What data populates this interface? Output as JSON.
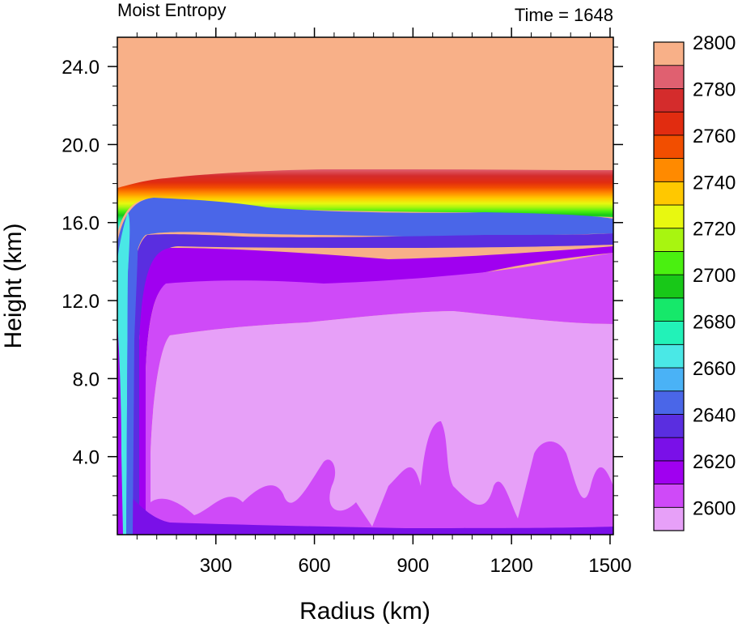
{
  "chart_data": {
    "type": "heatmap",
    "title": "Moist Entropy",
    "subtitle": "Time = 1648",
    "xlabel": "Radius (km)",
    "ylabel": "Height (km)",
    "xlim": [
      0,
      1510
    ],
    "ylim": [
      0,
      25.5
    ],
    "x_ticks": [
      300,
      600,
      900,
      1200,
      1500
    ],
    "x_tick_labels": [
      "300",
      "600",
      "900",
      "1200",
      "1500"
    ],
    "y_ticks": [
      4,
      8,
      12,
      16,
      20,
      24
    ],
    "y_tick_labels": [
      "4.0",
      "8.0",
      "12.0",
      "16.0",
      "20.0",
      "24.0"
    ],
    "legend": {
      "placement": "right",
      "levels": [
        2600,
        2610,
        2620,
        2630,
        2640,
        2650,
        2660,
        2670,
        2680,
        2690,
        2700,
        2710,
        2720,
        2730,
        2740,
        2750,
        2760,
        2770,
        2780,
        2790,
        2800
      ],
      "labels": [
        "2600",
        "2620",
        "2640",
        "2660",
        "2680",
        "2700",
        "2720",
        "2740",
        "2760",
        "2780",
        "2800"
      ],
      "colors": [
        "#e7a0f8",
        "#cf4af8",
        "#a000f0",
        "#7a10e8",
        "#5a2ee0",
        "#4a66e8",
        "#4ab2f6",
        "#4ae8e6",
        "#22f2b8",
        "#16e86a",
        "#18c818",
        "#4af010",
        "#a8f510",
        "#e8f810",
        "#ffc800",
        "#ff8a00",
        "#f24e00",
        "#e12c10",
        "#d42c2c",
        "#e06070",
        "#f8b088"
      ]
    },
    "series": [
      {
        "name": "",
        "level_bottom_km": 0,
        "note_level": 2600
      },
      {
        "x_km": [
          0,
          100,
          200,
          300,
          400,
          500,
          600,
          700,
          800,
          900,
          1000,
          1100,
          1200,
          1300,
          1400,
          1500
        ],
        "tropopause_height_km": [
          15.0,
          17.6,
          17.9,
          18.0,
          18.1,
          18.1,
          18.0,
          18.0,
          18.0,
          17.9,
          17.8,
          17.6,
          17.4,
          17.2,
          17.0,
          16.8
        ]
      }
    ]
  }
}
